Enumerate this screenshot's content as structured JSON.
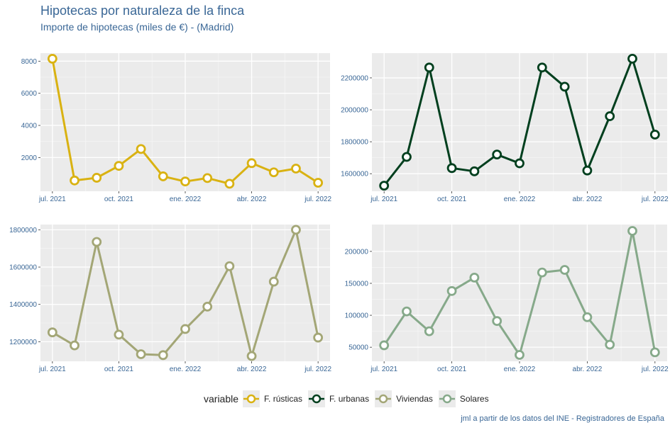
{
  "header": {
    "title": "Hipotecas por naturaleza de la finca",
    "subtitle": "Importe de hipotecas (miles de €) - (Madrid)"
  },
  "caption": "jml a partir de los datos del INE - Registradores de España",
  "legend": {
    "title": "variable",
    "items": [
      {
        "label": "F. rústicas",
        "color": "#d9b212"
      },
      {
        "label": "F. urbanas",
        "color": "#003f1e"
      },
      {
        "label": "Viviendas",
        "color": "#a3a676"
      },
      {
        "label": "Solares",
        "color": "#86a98a"
      }
    ]
  },
  "chart_data": [
    {
      "type": "line",
      "series_name": "F. rústicas",
      "color": "#d9b212",
      "x": [
        "2021-07",
        "2021-08",
        "2021-09",
        "2021-10",
        "2021-11",
        "2021-12",
        "2022-01",
        "2022-02",
        "2022-03",
        "2022-04",
        "2022-05",
        "2022-06",
        "2022-07"
      ],
      "values": [
        8150,
        570,
        740,
        1480,
        2530,
        830,
        510,
        720,
        370,
        1650,
        1080,
        1310,
        430
      ],
      "ylim": [
        -100,
        8500
      ],
      "yticks": [
        2000,
        4000,
        6000,
        8000
      ],
      "ytick_labels": [
        "2000",
        "4000",
        "6000",
        "8000"
      ],
      "xticks": [
        "2021-07",
        "2021-10",
        "2022-01",
        "2022-04",
        "2022-07"
      ],
      "xtick_labels": [
        "jul. 2021",
        "oct. 2021",
        "ene. 2022",
        "abr. 2022",
        "jul. 2022"
      ]
    },
    {
      "type": "line",
      "series_name": "F. urbanas",
      "color": "#003f1e",
      "x": [
        "2021-07",
        "2021-08",
        "2021-09",
        "2021-10",
        "2021-11",
        "2021-12",
        "2022-01",
        "2022-02",
        "2022-03",
        "2022-04",
        "2022-05",
        "2022-06",
        "2022-07"
      ],
      "values": [
        1525000,
        1705000,
        2265000,
        1635000,
        1615000,
        1720000,
        1665000,
        2265000,
        2145000,
        1620000,
        1960000,
        2320000,
        1845000
      ],
      "ylim": [
        1490000,
        2355000
      ],
      "yticks": [
        1600000,
        1800000,
        2000000,
        2200000
      ],
      "ytick_labels": [
        "1600000",
        "1800000",
        "2000000",
        "2200000"
      ],
      "xticks": [
        "2021-07",
        "2021-10",
        "2022-01",
        "2022-04",
        "2022-07"
      ],
      "xtick_labels": [
        "jul. 2021",
        "oct. 2021",
        "ene. 2022",
        "abr. 2022",
        "jul. 2022"
      ]
    },
    {
      "type": "line",
      "series_name": "Viviendas",
      "color": "#a3a676",
      "x": [
        "2021-07",
        "2021-08",
        "2021-09",
        "2021-10",
        "2021-11",
        "2021-12",
        "2022-01",
        "2022-02",
        "2022-03",
        "2022-04",
        "2022-05",
        "2022-06",
        "2022-07"
      ],
      "values": [
        1250000,
        1180000,
        1735000,
        1238000,
        1133000,
        1128000,
        1268000,
        1388000,
        1605000,
        1123000,
        1522000,
        1800000,
        1222000
      ],
      "ylim": [
        1095000,
        1828000
      ],
      "yticks": [
        1200000,
        1400000,
        1600000,
        1800000
      ],
      "ytick_labels": [
        "1200000",
        "1400000",
        "1600000",
        "1800000"
      ],
      "xticks": [
        "2021-07",
        "2021-10",
        "2022-01",
        "2022-04",
        "2022-07"
      ],
      "xtick_labels": [
        "jul. 2021",
        "oct. 2021",
        "ene. 2022",
        "abr. 2022",
        "jul. 2022"
      ]
    },
    {
      "type": "line",
      "series_name": "Solares",
      "color": "#86a98a",
      "x": [
        "2021-07",
        "2021-08",
        "2021-09",
        "2021-10",
        "2021-11",
        "2021-12",
        "2022-01",
        "2022-02",
        "2022-03",
        "2022-04",
        "2022-05",
        "2022-06",
        "2022-07"
      ],
      "values": [
        53000,
        106000,
        75000,
        138000,
        159000,
        91000,
        38000,
        167000,
        171000,
        97000,
        54000,
        232000,
        42000
      ],
      "ylim": [
        28000,
        242000
      ],
      "yticks": [
        50000,
        100000,
        150000,
        200000
      ],
      "ytick_labels": [
        "50000",
        "100000",
        "150000",
        "200000"
      ],
      "xticks": [
        "2021-07",
        "2021-10",
        "2022-01",
        "2022-04",
        "2022-07"
      ],
      "xtick_labels": [
        "jul. 2021",
        "oct. 2021",
        "ene. 2022",
        "abr. 2022",
        "jul. 2022"
      ]
    }
  ]
}
